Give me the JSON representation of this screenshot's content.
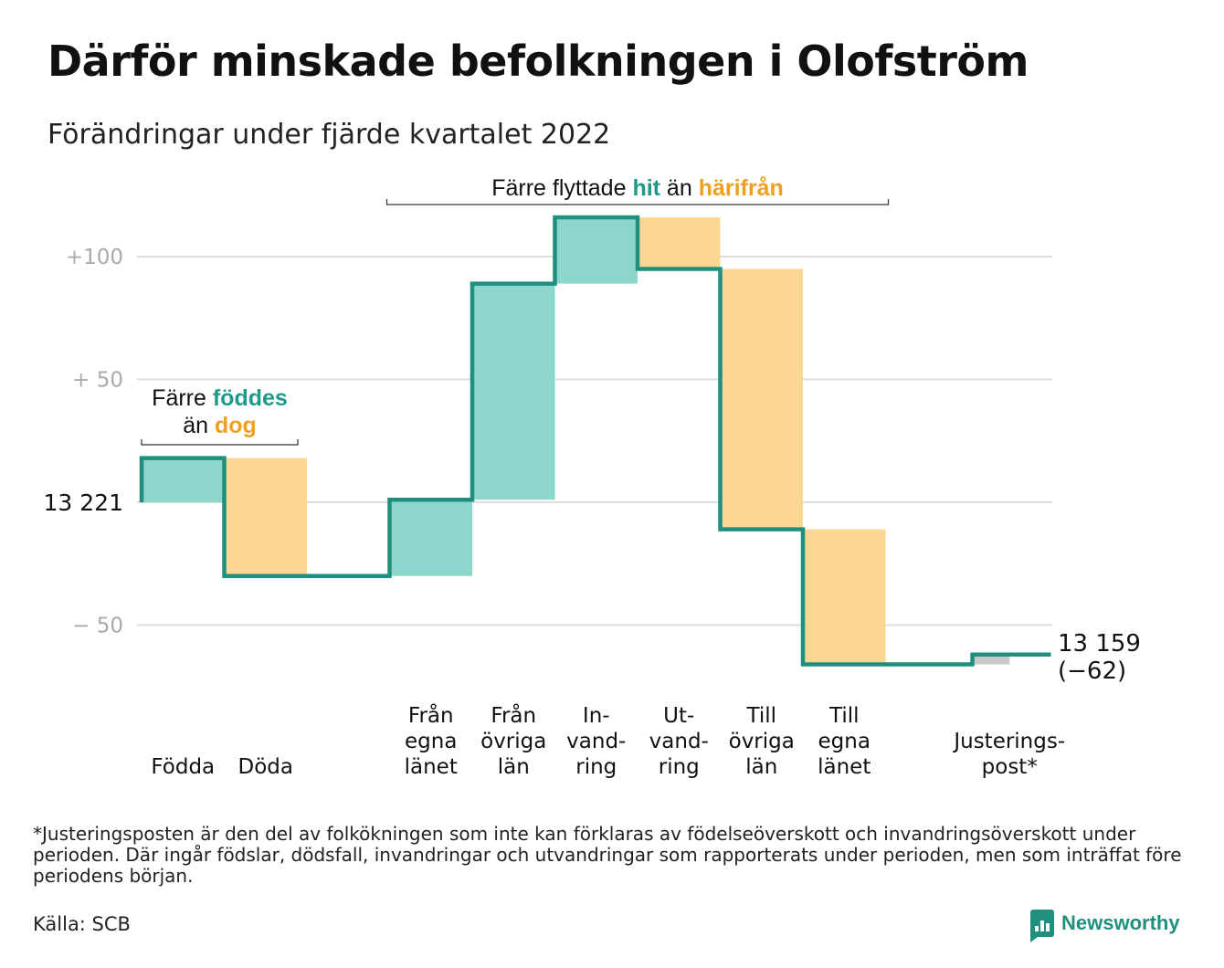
{
  "title": "Därför minskade befolkningen i Olofström",
  "subtitle": "Förändringar under fjärde kvartalet 2022",
  "colors": {
    "increase": "#8dd6cb",
    "decrease": "#fcd794",
    "adjustment": "#c8c8c8",
    "step_line": "#1f8f7e",
    "grid": "#dddddd",
    "hit": "#1f9a8a",
    "harifran": "#f0a020"
  },
  "annotations": {
    "births": {
      "line1_prefix": "Färre ",
      "line1_highlight": "föddes",
      "line2_prefix": "än ",
      "line2_highlight": "dog"
    },
    "moves": {
      "prefix": "Färre flyttade ",
      "highlight1": "hit",
      "middle": " än ",
      "highlight2": "härifrån"
    }
  },
  "start_label": "13 221",
  "end_label": {
    "line1": "13 159",
    "line2": "(−62)"
  },
  "chart_data": {
    "type": "waterfall",
    "start_value": 13221,
    "end_value": 13159,
    "y_reference": "relative change from 13 221",
    "y_ticks": [
      {
        "value": 100,
        "label": "+100"
      },
      {
        "value": 50,
        "label": "+ 50"
      },
      {
        "value": 0,
        "label": ""
      },
      {
        "value": -50,
        "label": "− 50"
      }
    ],
    "ylim": [
      -78,
      118
    ],
    "grid": true,
    "steps": [
      {
        "category": [
          "Födda"
        ],
        "value": 18,
        "kind": "increase"
      },
      {
        "category": [
          "Döda"
        ],
        "value": -48,
        "kind": "decrease"
      },
      {
        "category": [],
        "value": 0,
        "kind": "none"
      },
      {
        "category": [
          "Från",
          "egna",
          "länet"
        ],
        "value": 31,
        "kind": "increase"
      },
      {
        "category": [
          "Från",
          "övriga",
          "län"
        ],
        "value": 88,
        "kind": "increase"
      },
      {
        "category": [
          "In-",
          "vand-",
          "ring"
        ],
        "value": 27,
        "kind": "increase"
      },
      {
        "category": [
          "Ut-",
          "vand-",
          "ring"
        ],
        "value": -21,
        "kind": "decrease"
      },
      {
        "category": [
          "Till",
          "övriga",
          "län"
        ],
        "value": -106,
        "kind": "decrease"
      },
      {
        "category": [
          "Till",
          "egna",
          "länet"
        ],
        "value": -55,
        "kind": "decrease"
      },
      {
        "category": [],
        "value": 0,
        "kind": "none"
      },
      {
        "category": [
          "Justerings-",
          "post*"
        ],
        "value": 4,
        "kind": "adjustment"
      }
    ]
  },
  "footnote": "*Justeringsposten är den del av folkökningen som inte kan förklaras av födelseöverskott och invandringsöverskott under perioden. Där ingår födslar, dödsfall, invandringar och utvandringar som rapporterats under perioden, men som inträffat före periodens början.",
  "source": "Källa: SCB",
  "brand": "Newsworthy"
}
